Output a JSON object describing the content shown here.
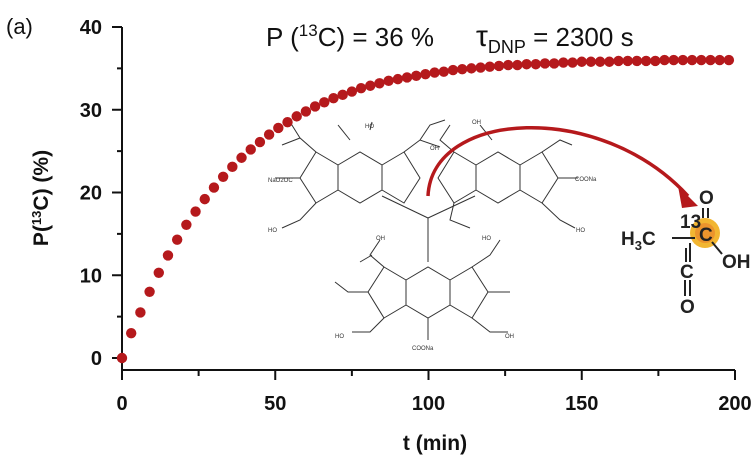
{
  "panel_label": "(a)",
  "annotation": {
    "p_prefix": "P (",
    "p_sup": "13",
    "p_suffix": "C) = 36 %",
    "tau_symbol": "τ",
    "tau_sub": "DNP",
    "tau_value": " = 2300 s"
  },
  "molecule": {
    "h3c": "H3C",
    "h3c_sub": "3",
    "c13_sup": "13",
    "c13": "C",
    "c_lower": "C",
    "o_top": "O",
    "oh": "OH",
    "o_bottom": "O"
  },
  "colors": {
    "marker": "#b5191c",
    "arrow": "#b5191c",
    "highlight": "#f2b632",
    "axis": "#111111"
  },
  "chart_data": {
    "type": "scatter",
    "xlabel": "t (min)",
    "ylabel_prefix": "P(",
    "ylabel_sup": "13",
    "ylabel_suffix": "C) (%)",
    "xlim": [
      0,
      200
    ],
    "ylim": [
      0,
      40
    ],
    "xticks": [
      0,
      50,
      100,
      150,
      200
    ],
    "yticks": [
      0,
      10,
      20,
      30,
      40
    ],
    "grid": false,
    "series": [
      {
        "x": [
          0,
          3,
          6,
          9,
          12,
          15,
          18,
          21,
          24,
          27,
          30,
          33,
          36,
          39,
          42,
          45,
          48,
          51,
          54,
          57,
          60,
          63,
          66,
          69,
          72,
          75,
          78,
          81,
          84,
          87,
          90,
          93,
          96,
          99,
          102,
          105,
          108,
          111,
          114,
          117,
          120,
          123,
          126,
          129,
          132,
          135,
          138,
          141,
          144,
          147,
          150,
          153,
          156,
          159,
          162,
          165,
          168,
          171,
          174,
          177,
          180,
          183,
          186,
          189,
          192,
          195,
          198
        ],
        "y": [
          0,
          3,
          5.5,
          8,
          10.3,
          12.4,
          14.3,
          16.1,
          17.7,
          19.2,
          20.6,
          21.9,
          23.1,
          24.2,
          25.2,
          26.1,
          27,
          27.8,
          28.5,
          29.2,
          29.8,
          30.4,
          30.9,
          31.4,
          31.8,
          32.2,
          32.6,
          32.9,
          33.2,
          33.5,
          33.7,
          33.9,
          34.1,
          34.3,
          34.5,
          34.6,
          34.8,
          34.9,
          35,
          35.1,
          35.2,
          35.3,
          35.4,
          35.4,
          35.5,
          35.5,
          35.6,
          35.6,
          35.7,
          35.7,
          35.8,
          35.8,
          35.8,
          35.8,
          35.9,
          35.9,
          35.9,
          35.9,
          35.9,
          36,
          36,
          36,
          36,
          36,
          36,
          36,
          36
        ]
      }
    ]
  }
}
